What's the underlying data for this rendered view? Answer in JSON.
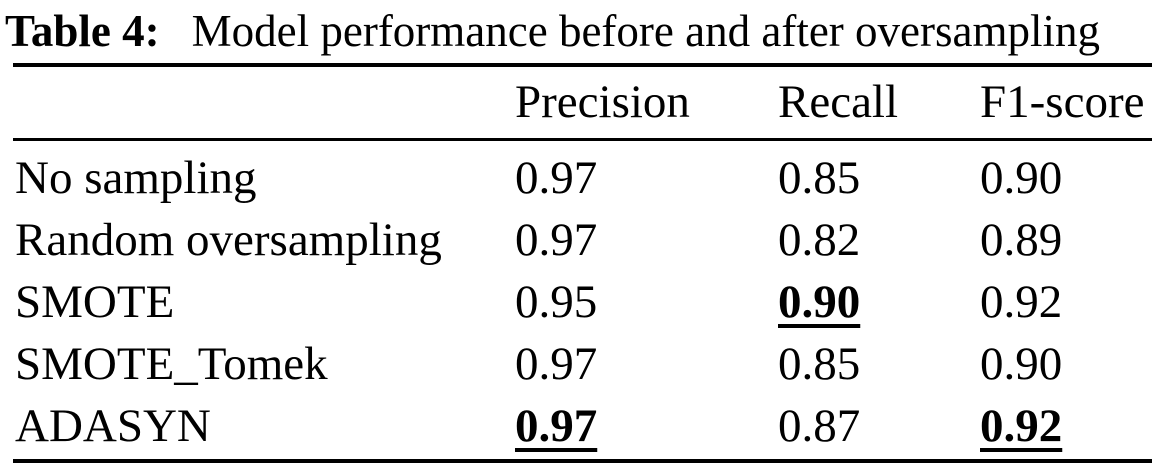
{
  "caption": {
    "label": "Table 4:",
    "text": "Model performance before and after oversampling"
  },
  "table": {
    "columns": {
      "precision": "Precision",
      "recall": "Recall",
      "f1": "F1-score"
    },
    "rows": [
      {
        "label": "No sampling",
        "precision": "0.97",
        "recall": "0.85",
        "f1": "0.90",
        "precision_best": false,
        "recall_best": false,
        "f1_best": false
      },
      {
        "label": "Random oversampling",
        "precision": "0.97",
        "recall": "0.82",
        "f1": "0.89",
        "precision_best": false,
        "recall_best": false,
        "f1_best": false
      },
      {
        "label": "SMOTE",
        "precision": "0.95",
        "recall": "0.90",
        "f1": "0.92",
        "precision_best": false,
        "recall_best": true,
        "f1_best": false
      },
      {
        "label": "SMOTE_Tomek",
        "precision": "0.97",
        "recall": "0.85",
        "f1": "0.90",
        "precision_best": false,
        "recall_best": false,
        "f1_best": false
      },
      {
        "label": "ADASYN",
        "precision": "0.97",
        "recall": "0.87",
        "f1": "0.92",
        "precision_best": true,
        "recall_best": false,
        "f1_best": true
      }
    ]
  },
  "colors": {
    "text": "#000000",
    "background": "#ffffff",
    "rule": "#000000"
  }
}
